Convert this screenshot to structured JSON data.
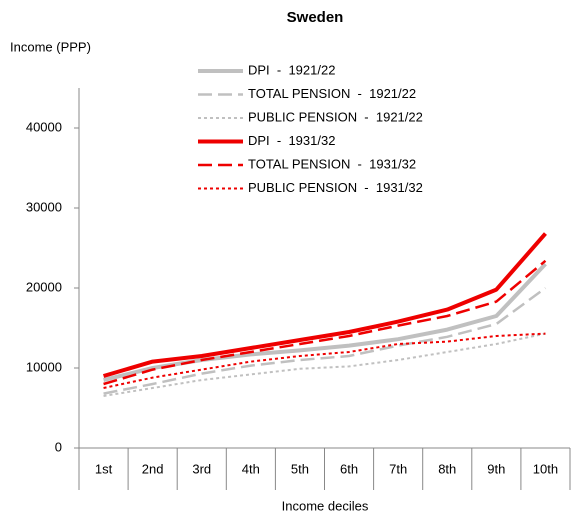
{
  "chart_data": {
    "type": "line",
    "title": "Sweden",
    "ylabel": "Income (PPP)",
    "xlabel": "Income deciles",
    "categories": [
      "1st",
      "2nd",
      "3rd",
      "4th",
      "5th",
      "6th",
      "7th",
      "8th",
      "9th",
      "10th"
    ],
    "ylim": [
      0,
      45000
    ],
    "yticks": [
      0,
      10000,
      20000,
      30000,
      40000
    ],
    "grid": false,
    "series": [
      {
        "name": "DPI  -  1921/22",
        "color": "#c0c0c0",
        "dash": "solid",
        "values": [
          8500,
          10000,
          11000,
          11700,
          12200,
          12800,
          13600,
          14800,
          16500,
          23000
        ]
      },
      {
        "name": "TOTAL PENSION  -  1921/22",
        "color": "#c0c0c0",
        "dash": "dashed",
        "values": [
          6800,
          8000,
          9300,
          10300,
          11000,
          11500,
          12800,
          13900,
          15500,
          20000
        ]
      },
      {
        "name": "PUBLIC PENSION  -  1921/22",
        "color": "#c0c0c0",
        "dash": "dotted",
        "values": [
          6500,
          7500,
          8500,
          9200,
          9900,
          10200,
          11000,
          12000,
          13000,
          14300
        ]
      },
      {
        "name": "DPI  -  1931/32",
        "color": "#ee0000",
        "dash": "solid",
        "values": [
          9000,
          10800,
          11500,
          12500,
          13500,
          14500,
          15800,
          17300,
          19800,
          26800
        ]
      },
      {
        "name": "TOTAL PENSION  -  1931/32",
        "color": "#ee0000",
        "dash": "dashed",
        "values": [
          8000,
          9800,
          11000,
          12000,
          13000,
          14000,
          15300,
          16500,
          18300,
          23400
        ]
      },
      {
        "name": "PUBLIC PENSION  -  1931/32",
        "color": "#ee0000",
        "dash": "dotted",
        "values": [
          7500,
          8800,
          9800,
          10800,
          11500,
          12000,
          13000,
          13300,
          14000,
          14300
        ]
      }
    ]
  }
}
